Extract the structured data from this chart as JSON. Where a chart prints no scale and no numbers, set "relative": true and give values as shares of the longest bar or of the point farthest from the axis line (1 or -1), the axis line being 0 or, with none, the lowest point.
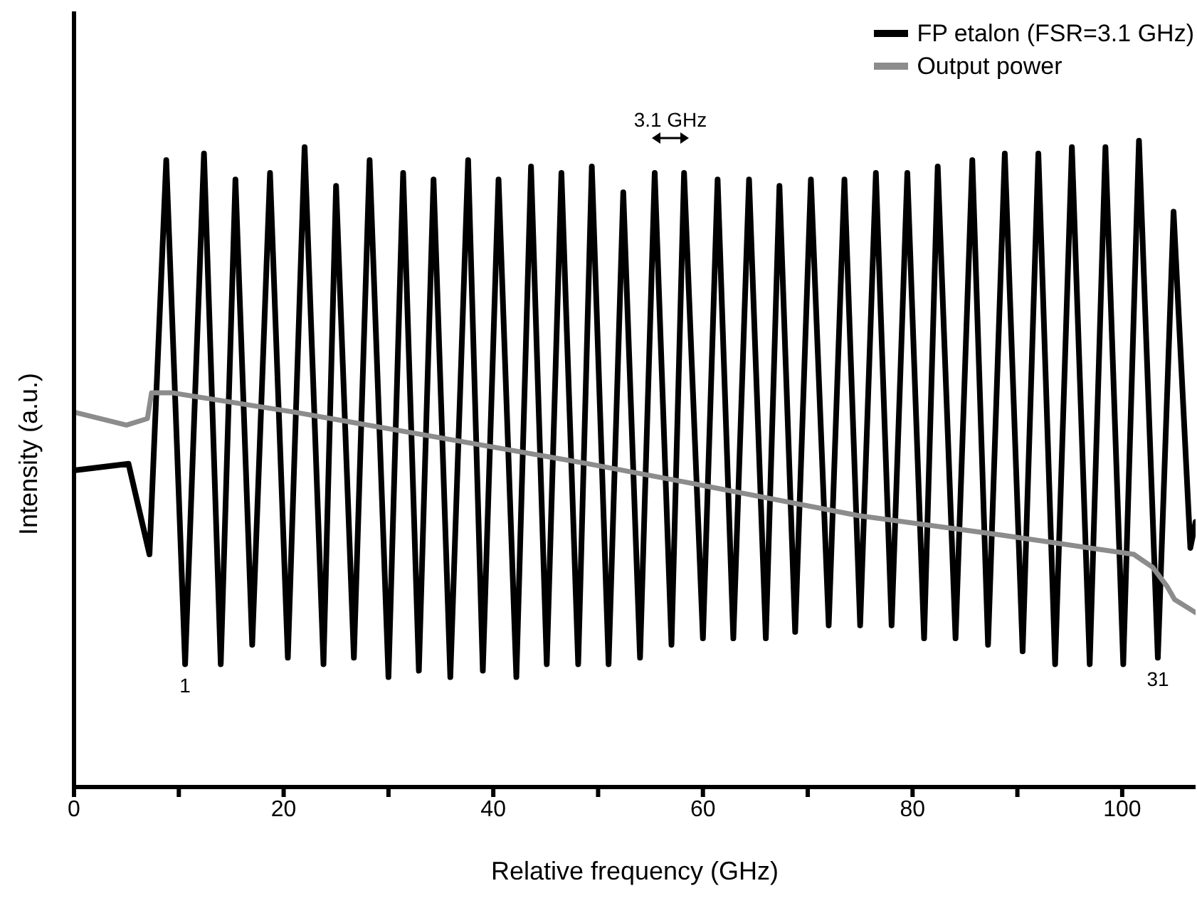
{
  "chart_data": {
    "type": "line",
    "relative": true,
    "xlabel": "Relative frequency (GHz)",
    "ylabel": "Intensity (a.u.)",
    "xlim": [
      0,
      107
    ],
    "xticks": [
      0,
      {
        "value": 10,
        "label": null
      },
      20,
      {
        "value": 30,
        "label": null
      },
      40,
      {
        "value": 50,
        "label": null
      },
      60,
      {
        "value": 70,
        "label": null
      },
      80,
      {
        "value": 90,
        "label": null
      },
      100
    ],
    "legend": "top right",
    "marker": "none",
    "line_style": "solid",
    "annotations": [
      "3.1 GHz",
      {
        "text": "1",
        "x": 10.6,
        "y": 0.19
      },
      {
        "text": "31",
        "x": 103.4,
        "y": 0.2
      }
    ],
    "series": [
      {
        "name": "FP etalon (FSR=3.1 GHz)",
        "color": "#000000",
        "x": [
          0,
          5.2,
          7.2,
          8.8,
          10.6,
          12.4,
          14.0,
          15.4,
          17.0,
          18.7,
          20.4,
          22.0,
          23.8,
          25.0,
          26.7,
          28.2,
          30.0,
          31.4,
          32.9,
          34.3,
          35.9,
          37.6,
          39.0,
          40.5,
          42.2,
          43.6,
          45.1,
          46.5,
          48.1,
          49.4,
          51.0,
          52.4,
          54.0,
          55.4,
          57.0,
          58.2,
          60.0,
          61.4,
          62.9,
          64.4,
          66.0,
          67.3,
          68.8,
          70.3,
          72.0,
          73.5,
          75.0,
          76.5,
          78.0,
          79.5,
          81.1,
          82.4,
          84.1,
          85.7,
          87.2,
          88.8,
          90.5,
          92.0,
          93.6,
          95.2,
          96.9,
          98.4,
          100.1,
          101.6,
          103.4,
          104.9,
          106.5,
          107
        ],
        "values": [
          0.49,
          0.5,
          0.36,
          0.97,
          0.19,
          0.98,
          0.19,
          0.94,
          0.22,
          0.95,
          0.2,
          0.99,
          0.19,
          0.93,
          0.2,
          0.97,
          0.17,
          0.95,
          0.18,
          0.94,
          0.17,
          0.97,
          0.18,
          0.94,
          0.17,
          0.96,
          0.19,
          0.95,
          0.19,
          0.96,
          0.19,
          0.92,
          0.2,
          0.95,
          0.22,
          0.95,
          0.23,
          0.94,
          0.23,
          0.94,
          0.23,
          0.93,
          0.24,
          0.94,
          0.25,
          0.94,
          0.25,
          0.95,
          0.25,
          0.95,
          0.23,
          0.96,
          0.23,
          0.97,
          0.22,
          0.98,
          0.21,
          0.98,
          0.19,
          0.99,
          0.19,
          0.99,
          0.19,
          1.0,
          0.2,
          0.89,
          0.37,
          0.41
        ]
      },
      {
        "name": "Output power",
        "color": "#8c8c8c",
        "x": [
          0,
          5.0,
          7.0,
          7.4,
          9.3,
          21.0,
          49.1,
          58.9,
          74.8,
          88.4,
          101.1,
          102.9,
          104.3,
          105.0,
          107
        ],
        "values": [
          0.58,
          0.56,
          0.57,
          0.61,
          0.61,
          0.58,
          0.5,
          0.47,
          0.42,
          0.39,
          0.36,
          0.34,
          0.31,
          0.29,
          0.27
        ]
      }
    ]
  }
}
